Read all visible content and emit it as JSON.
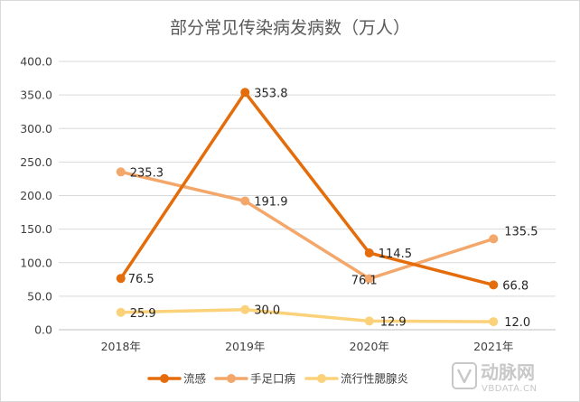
{
  "chart_data": {
    "type": "line",
    "title": "部分常见传染病发病数（万人）",
    "categories": [
      "2018年",
      "2019年",
      "2020年",
      "2021年"
    ],
    "ylim": [
      0,
      400
    ],
    "ytick_labels": [
      "0.0",
      "50.0",
      "100.0",
      "150.0",
      "200.0",
      "250.0",
      "300.0",
      "350.0",
      "400.0"
    ],
    "grid": true,
    "legend_position": "bottom",
    "series": [
      {
        "name": "流感",
        "values": [
          76.5,
          353.8,
          114.5,
          66.8
        ],
        "color": "#e46c0a",
        "labels": [
          "76.5",
          "353.8",
          "114.5",
          "66.8"
        ]
      },
      {
        "name": "手足口病",
        "values": [
          235.3,
          191.9,
          76.1,
          135.5
        ],
        "color": "#f4a76a",
        "labels": [
          "235.3",
          "191.9",
          "76.1",
          "135.5"
        ]
      },
      {
        "name": "流行性腮腺炎",
        "values": [
          25.9,
          30.0,
          12.9,
          12.0
        ],
        "color": "#fbd27a",
        "labels": [
          "25.9",
          "30.0",
          "12.9",
          "12.0"
        ]
      }
    ]
  },
  "watermark": {
    "brand": "动脉网",
    "site": "VBDATA.CN"
  }
}
